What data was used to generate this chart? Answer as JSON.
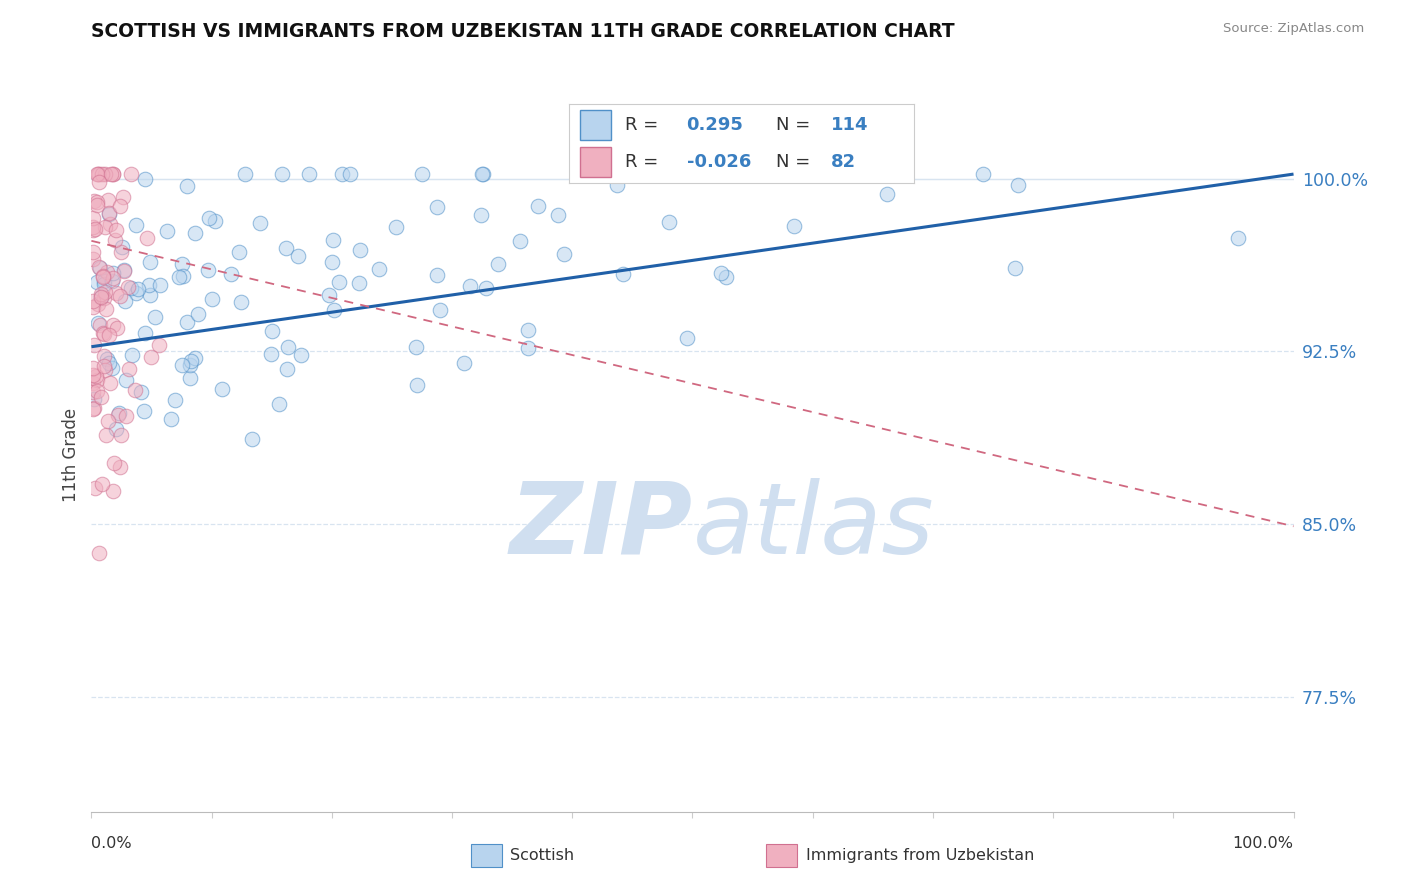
{
  "title": "SCOTTISH VS IMMIGRANTS FROM UZBEKISTAN 11TH GRADE CORRELATION CHART",
  "source": "Source: ZipAtlas.com",
  "ylabel": "11th Grade",
  "yticks": [
    0.775,
    0.85,
    0.925,
    1.0
  ],
  "ytick_labels": [
    "77.5%",
    "85.0%",
    "92.5%",
    "100.0%"
  ],
  "xlim": [
    0.0,
    1.0
  ],
  "ylim": [
    0.725,
    1.035
  ],
  "blue_color": "#3a7fc1",
  "pink_color": "#e08090",
  "blue_scatter_face": "#b8d4ee",
  "blue_scatter_edge": "#5090c8",
  "pink_scatter_face": "#f0b0c0",
  "pink_scatter_edge": "#d07090",
  "trend_blue_color": "#2060a8",
  "trend_pink_color": "#d06880",
  "watermark_zip": "ZIP",
  "watermark_atlas": "atlas",
  "watermark_color": "#d0dff0",
  "background_color": "#ffffff",
  "grid_color": "#d8e4f0",
  "R_blue": 0.295,
  "R_pink": -0.026,
  "N_blue": 114,
  "N_pink": 82,
  "scatter_size": 110,
  "scatter_alpha": 0.55,
  "blue_trend_start_y": 0.927,
  "blue_trend_end_y": 1.002,
  "pink_trend_start_y": 0.973,
  "pink_trend_end_y": 0.849
}
